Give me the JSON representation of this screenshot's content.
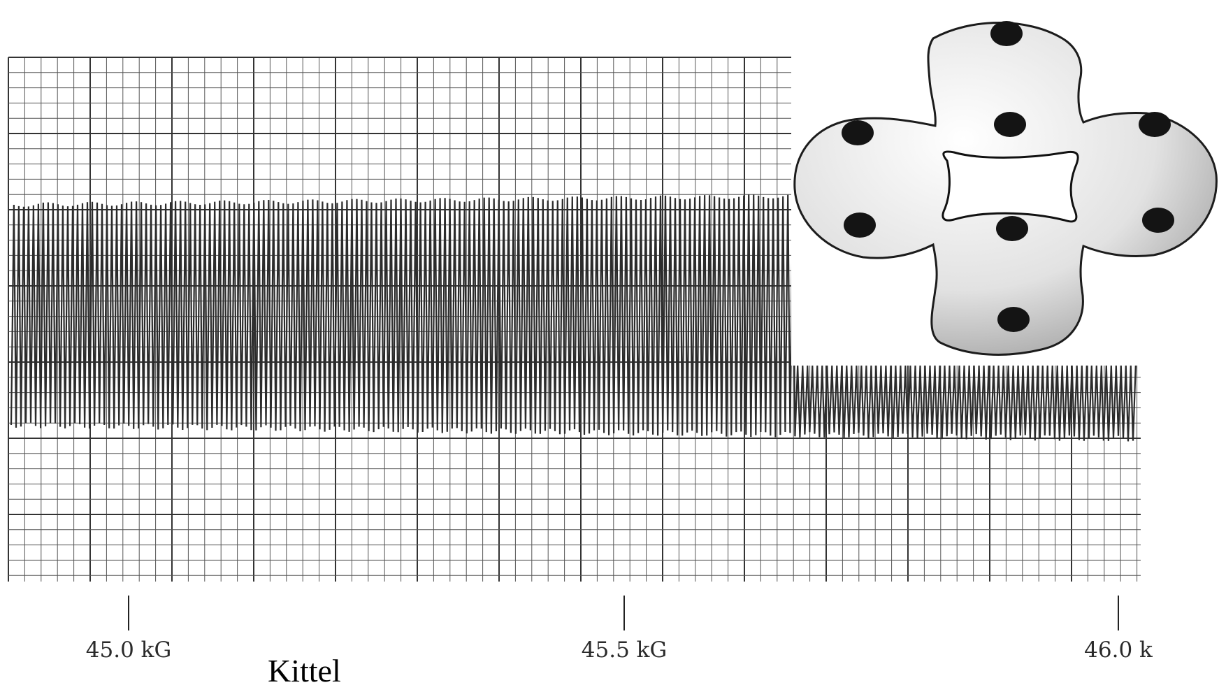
{
  "chart_data": {
    "type": "line",
    "title": "",
    "xlabel": "",
    "ylabel": "",
    "x_unit": "kG",
    "x_ticks": [
      {
        "value": 45.0,
        "label": "45.0 kG"
      },
      {
        "value": 45.5,
        "label": "45.5 kG"
      },
      {
        "value": 46.0,
        "label": "46.0 k"
      }
    ],
    "xlim": [
      44.88,
      46.02
    ],
    "signal": {
      "description_kind": "de Haas-van Alphen oscillation trace",
      "oscillation_count": 230,
      "amplitude_relative": 1.0
    },
    "grid": true,
    "colors": {
      "trace": "#2b2b2b",
      "grid_major": "#333333",
      "grid_minor": "#555555",
      "fermi_surface_fill": "#dcdcdc",
      "orbit_dot": "#141414"
    }
  },
  "inset": {
    "kind": "fermi-surface",
    "dots": 8
  },
  "caption": "Kittel"
}
